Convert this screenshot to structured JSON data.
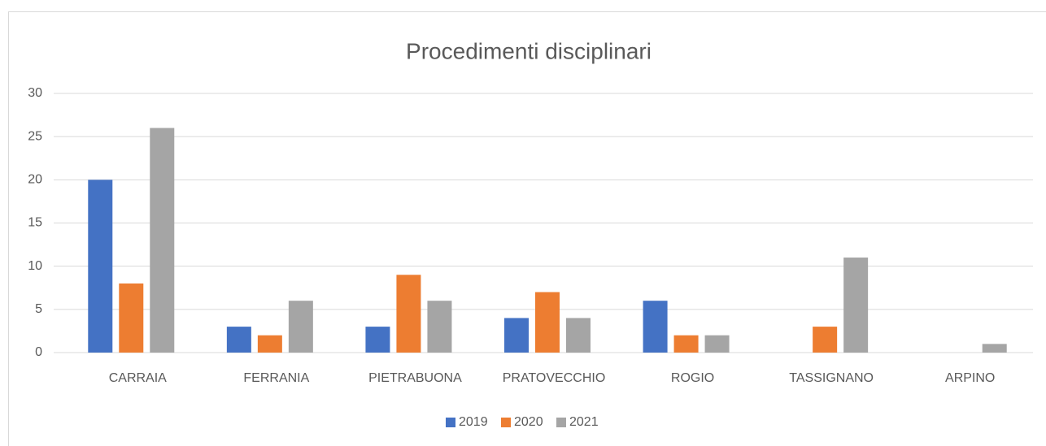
{
  "chart_data": {
    "type": "bar",
    "title": "Procedimenti disciplinari",
    "categories": [
      "CARRAIA",
      "FERRANIA",
      "PIETRABUONA",
      "PRATOVECCHIO",
      "ROGIO",
      "TASSIGNANO",
      "ARPINO"
    ],
    "series": [
      {
        "name": "2019",
        "color": "#4472c4",
        "values": [
          20,
          3,
          3,
          4,
          6,
          0,
          0
        ]
      },
      {
        "name": "2020",
        "color": "#ed7d31",
        "values": [
          8,
          2,
          9,
          7,
          2,
          3,
          0
        ]
      },
      {
        "name": "2021",
        "color": "#a5a5a5",
        "values": [
          26,
          6,
          6,
          4,
          2,
          11,
          1
        ]
      }
    ],
    "ylim": [
      0,
      30
    ],
    "yticks": [
      0,
      5,
      10,
      15,
      20,
      25,
      30
    ],
    "grid": true,
    "legend": "bottom"
  }
}
